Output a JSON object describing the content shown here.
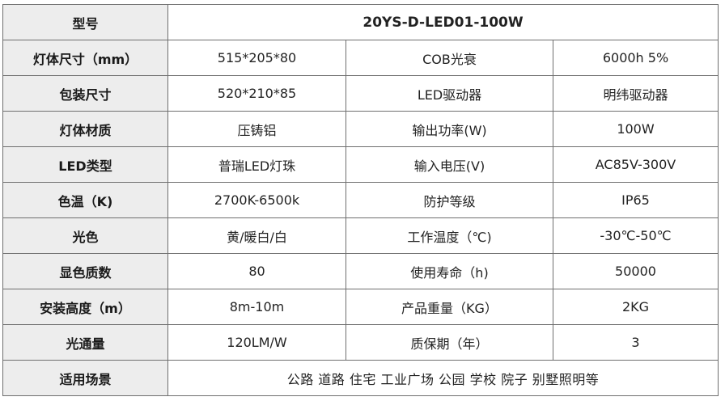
{
  "rows": [
    {
      "label": "型号",
      "model": "20YS-D-LED01-100W"
    },
    {
      "label": "灯体尺寸（mm）",
      "v1": "515*205*80",
      "label2": "COB光衰",
      "v2": "6000h 5%"
    },
    {
      "label": "包装尺寸",
      "v1": "520*210*85",
      "label2": "LED驱动器",
      "v2": "明纬驱动器"
    },
    {
      "label": "灯体材质",
      "v1": "压铸铝",
      "label2": "输出功率(W)",
      "v2": "100W"
    },
    {
      "label": "LED类型",
      "v1": "普瑞LED灯珠",
      "label2": "输入电压(V)",
      "v2": "AC85V-300V"
    },
    {
      "label": "色温（K)",
      "v1": "2700K-6500k",
      "label2": "防护等级",
      "v2": "IP65"
    },
    {
      "label": "光色",
      "v1": "黄/暖白/白",
      "label2": "工作温度（℃)",
      "v2": "-30℃-50℃"
    },
    {
      "label": "显色质数",
      "v1": "80",
      "label2": "使用寿命（h)",
      "v2": "50000"
    },
    {
      "label": "安装高度（m）",
      "v1": "8m-10m",
      "label2": "产品重量（KG）",
      "v2": "2KG"
    },
    {
      "label": "光通量",
      "v1": "120LM/W",
      "label2": "质保期（年）",
      "v2": "3"
    },
    {
      "label": "适用场景",
      "scenarios": "公路 道路 住宅 工业广场 公园 学校 院子 别墅照明等"
    }
  ]
}
